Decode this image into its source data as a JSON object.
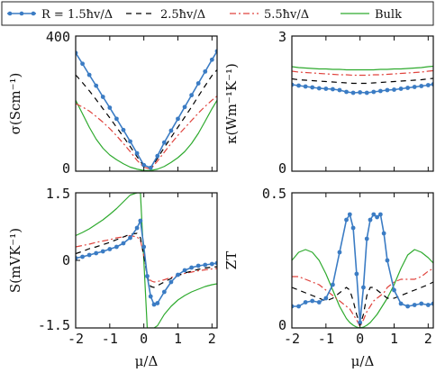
{
  "chart_data": [
    {
      "type": "line",
      "ylabel": "σ(Scm⁻¹)",
      "xlim": [
        -2,
        2.15
      ],
      "ylim": [
        0,
        400
      ],
      "yticks": [
        "0",
        "400"
      ],
      "x": [
        -2.0,
        -1.8,
        -1.6,
        -1.4,
        -1.2,
        -1.0,
        -0.8,
        -0.6,
        -0.4,
        -0.2,
        0.0,
        0.2,
        0.4,
        0.6,
        0.8,
        1.0,
        1.2,
        1.4,
        1.6,
        1.8,
        2.0,
        2.15
      ],
      "series": [
        {
          "name": "R = 1.5ħv/Δ",
          "values": [
            350,
            318,
            285,
            253,
            220,
            188,
            155,
            122,
            88,
            53,
            18,
            10,
            45,
            85,
            120,
            155,
            190,
            225,
            260,
            295,
            330,
            355
          ]
        },
        {
          "name": "2.5ħv/Δ",
          "values": [
            285,
            262,
            238,
            212,
            185,
            158,
            130,
            102,
            73,
            43,
            15,
            8,
            38,
            70,
            100,
            130,
            160,
            190,
            222,
            253,
            283,
            300
          ]
        },
        {
          "name": "5.5ħv/Δ",
          "values": [
            200,
            190,
            178,
            162,
            145,
            126,
            105,
            82,
            58,
            32,
            12,
            6,
            30,
            56,
            82,
            106,
            128,
            150,
            172,
            192,
            210,
            222
          ]
        },
        {
          "name": "Bulk",
          "values": [
            210,
            170,
            130,
            95,
            68,
            48,
            34,
            22,
            12,
            6,
            2,
            2,
            6,
            14,
            26,
            40,
            58,
            82,
            112,
            148,
            185,
            210
          ]
        }
      ]
    },
    {
      "type": "line",
      "ylabel": "κ(Wm⁻¹K⁻¹)",
      "xlim": [
        -2,
        2.15
      ],
      "ylim": [
        0,
        3
      ],
      "yticks": [
        "0",
        "3"
      ],
      "x": [
        -2.0,
        -1.8,
        -1.6,
        -1.4,
        -1.2,
        -1.0,
        -0.8,
        -0.6,
        -0.4,
        -0.2,
        0.0,
        0.2,
        0.4,
        0.6,
        0.8,
        1.0,
        1.2,
        1.4,
        1.6,
        1.8,
        2.0,
        2.15
      ],
      "series": [
        {
          "name": "R = 1.5ħv/Δ",
          "values": [
            1.92,
            1.9,
            1.88,
            1.86,
            1.84,
            1.83,
            1.82,
            1.8,
            1.76,
            1.74,
            1.75,
            1.74,
            1.76,
            1.78,
            1.8,
            1.81,
            1.83,
            1.85,
            1.87,
            1.89,
            1.91,
            1.93
          ]
        },
        {
          "name": "2.5ħv/Δ",
          "values": [
            2.05,
            2.03,
            2.02,
            2.01,
            2.0,
            1.99,
            1.98,
            1.97,
            1.96,
            1.95,
            1.95,
            1.95,
            1.96,
            1.97,
            1.98,
            1.99,
            2.0,
            2.01,
            2.02,
            2.03,
            2.05,
            2.06
          ]
        },
        {
          "name": "5.5ħv/Δ",
          "values": [
            2.22,
            2.2,
            2.19,
            2.18,
            2.17,
            2.16,
            2.15,
            2.14,
            2.14,
            2.13,
            2.13,
            2.13,
            2.14,
            2.14,
            2.15,
            2.16,
            2.17,
            2.18,
            2.19,
            2.2,
            2.22,
            2.23
          ]
        },
        {
          "name": "Bulk",
          "values": [
            2.32,
            2.3,
            2.29,
            2.28,
            2.27,
            2.27,
            2.26,
            2.26,
            2.25,
            2.25,
            2.25,
            2.25,
            2.25,
            2.26,
            2.26,
            2.27,
            2.27,
            2.28,
            2.29,
            2.3,
            2.32,
            2.33
          ]
        }
      ]
    },
    {
      "type": "line",
      "ylabel": "S(mVK⁻¹)",
      "xlabel": "μ/Δ",
      "xlim": [
        -2,
        2.15
      ],
      "ylim": [
        -1.5,
        1.5
      ],
      "yticks": [
        "1.5",
        "0",
        "-1.5"
      ],
      "xticks": [
        "-2",
        "-1",
        "0",
        "1",
        "2"
      ],
      "x": [
        -2.0,
        -1.8,
        -1.6,
        -1.4,
        -1.2,
        -1.0,
        -0.8,
        -0.6,
        -0.4,
        -0.2,
        -0.1,
        0.0,
        0.1,
        0.2,
        0.3,
        0.4,
        0.6,
        0.8,
        1.0,
        1.2,
        1.4,
        1.6,
        1.8,
        2.0,
        2.15
      ],
      "series": [
        {
          "name": "R = 1.5ħv/Δ",
          "values": [
            0.05,
            0.08,
            0.12,
            0.16,
            0.2,
            0.25,
            0.3,
            0.38,
            0.5,
            0.72,
            0.88,
            0.3,
            -0.35,
            -0.8,
            -0.98,
            -0.95,
            -0.7,
            -0.48,
            -0.32,
            -0.22,
            -0.16,
            -0.12,
            -0.1,
            -0.08,
            -0.06
          ]
        },
        {
          "name": "2.5ħv/Δ",
          "values": [
            0.15,
            0.2,
            0.26,
            0.3,
            0.35,
            0.4,
            0.46,
            0.52,
            0.58,
            0.6,
            0.5,
            0.1,
            -0.35,
            -0.58,
            -0.6,
            -0.56,
            -0.48,
            -0.4,
            -0.34,
            -0.28,
            -0.24,
            -0.2,
            -0.17,
            -0.15,
            -0.14
          ]
        },
        {
          "name": "5.5ħv/Δ",
          "values": [
            0.3,
            0.33,
            0.36,
            0.4,
            0.43,
            0.46,
            0.5,
            0.52,
            0.55,
            0.52,
            0.45,
            0.1,
            -0.3,
            -0.45,
            -0.48,
            -0.47,
            -0.43,
            -0.38,
            -0.33,
            -0.29,
            -0.26,
            -0.23,
            -0.21,
            -0.19,
            -0.18
          ]
        },
        {
          "name": "Bulk",
          "values": [
            0.55,
            0.62,
            0.7,
            0.8,
            0.9,
            1.02,
            1.15,
            1.3,
            1.45,
            1.5,
            1.5,
            0.0,
            -1.5,
            -1.5,
            -1.5,
            -1.45,
            -1.2,
            -1.02,
            -0.88,
            -0.78,
            -0.7,
            -0.64,
            -0.58,
            -0.54,
            -0.52
          ]
        }
      ]
    },
    {
      "type": "line",
      "ylabel": "ZT",
      "xlabel": "μ/Δ",
      "xlim": [
        -2,
        2.15
      ],
      "ylim": [
        0,
        0.5
      ],
      "yticks": [
        "0.5",
        "0"
      ],
      "xticks": [
        "-2",
        "-1",
        "0",
        "1",
        "2"
      ],
      "x": [
        -2.0,
        -1.8,
        -1.6,
        -1.4,
        -1.2,
        -1.0,
        -0.8,
        -0.6,
        -0.4,
        -0.3,
        -0.2,
        -0.1,
        0.0,
        0.1,
        0.2,
        0.3,
        0.4,
        0.5,
        0.6,
        0.7,
        0.8,
        1.0,
        1.2,
        1.4,
        1.6,
        1.8,
        2.0,
        2.15
      ],
      "series": [
        {
          "name": "R = 1.5ħv/Δ",
          "values": [
            0.08,
            0.08,
            0.095,
            0.1,
            0.095,
            0.11,
            0.16,
            0.28,
            0.4,
            0.42,
            0.37,
            0.2,
            0.02,
            0.15,
            0.33,
            0.4,
            0.42,
            0.41,
            0.42,
            0.35,
            0.25,
            0.14,
            0.09,
            0.08,
            0.085,
            0.09,
            0.085,
            0.09
          ]
        },
        {
          "name": "2.5ħv/Δ",
          "values": [
            0.15,
            0.14,
            0.13,
            0.12,
            0.11,
            0.1,
            0.11,
            0.13,
            0.15,
            0.14,
            0.1,
            0.05,
            0.01,
            0.05,
            0.12,
            0.15,
            0.15,
            0.14,
            0.13,
            0.12,
            0.11,
            0.11,
            0.12,
            0.13,
            0.14,
            0.15,
            0.16,
            0.17
          ]
        },
        {
          "name": "5.5ħv/Δ",
          "values": [
            0.19,
            0.19,
            0.18,
            0.17,
            0.16,
            0.14,
            0.12,
            0.1,
            0.08,
            0.07,
            0.05,
            0.03,
            0.005,
            0.03,
            0.06,
            0.08,
            0.1,
            0.11,
            0.12,
            0.13,
            0.15,
            0.17,
            0.18,
            0.18,
            0.18,
            0.19,
            0.21,
            0.22
          ]
        },
        {
          "name": "Bulk",
          "values": [
            0.25,
            0.28,
            0.29,
            0.28,
            0.25,
            0.2,
            0.14,
            0.08,
            0.035,
            0.02,
            0.01,
            0.003,
            0.0,
            0.003,
            0.01,
            0.02,
            0.035,
            0.05,
            0.07,
            0.09,
            0.11,
            0.16,
            0.22,
            0.27,
            0.29,
            0.28,
            0.26,
            0.24
          ]
        }
      ]
    }
  ],
  "legend": {
    "items": [
      {
        "label": "R = 1.5ħv/Δ",
        "color": "#3b7cc4",
        "style": "solid-dots"
      },
      {
        "label": "2.5ħv/Δ",
        "color": "#000000",
        "style": "dashed"
      },
      {
        "label": "5.5ħv/Δ",
        "color": "#e0443e",
        "style": "dash-dot"
      },
      {
        "label": "Bulk",
        "color": "#2eaa2e",
        "style": "solid"
      }
    ]
  }
}
